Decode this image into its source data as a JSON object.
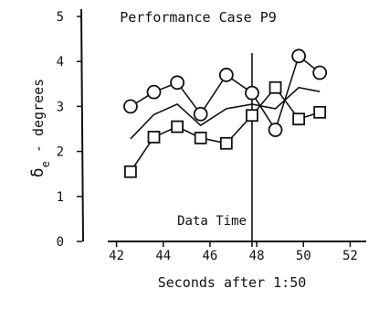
{
  "chart_data": {
    "type": "line",
    "title": "Performance Case P9",
    "xlabel": "Seconds after 1:50",
    "ylabel": "δe - degrees",
    "ylabel_main": "δ",
    "ylabel_sub": "e",
    "ylabel_rest": " - degrees",
    "xlim": [
      41,
      53
    ],
    "ylim": [
      0,
      5
    ],
    "xticks": [
      42,
      44,
      46,
      48,
      50,
      52
    ],
    "yticks": [
      0,
      1,
      2,
      3,
      4,
      5
    ],
    "ytick_labels": [
      "0",
      "1",
      "2",
      "3",
      "4",
      "5"
    ],
    "grid": false,
    "annotation": {
      "text": "Data Time",
      "x": 47.8
    },
    "series": [
      {
        "marker": "circle",
        "x": [
          42.6,
          43.6,
          44.6,
          45.6,
          46.7,
          47.8,
          48.8,
          49.8,
          50.7
        ],
        "y": [
          3.0,
          3.32,
          3.53,
          2.83,
          3.7,
          3.3,
          2.48,
          4.12,
          3.75
        ]
      },
      {
        "marker": "none",
        "x": [
          42.6,
          43.6,
          44.6,
          45.6,
          46.7,
          47.8,
          48.8,
          49.8,
          50.7
        ],
        "y": [
          2.28,
          2.82,
          3.05,
          2.58,
          2.95,
          3.05,
          2.95,
          3.42,
          3.33
        ]
      },
      {
        "marker": "square",
        "x": [
          42.6,
          43.6,
          44.6,
          45.6,
          46.7,
          47.8,
          48.8,
          49.8,
          50.7
        ],
        "y": [
          1.55,
          2.32,
          2.55,
          2.3,
          2.18,
          2.8,
          3.42,
          2.72,
          2.87
        ]
      }
    ]
  }
}
